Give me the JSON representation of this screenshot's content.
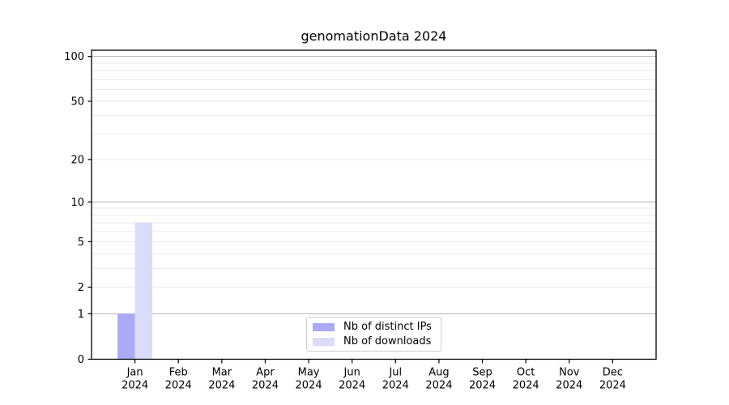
{
  "title": "genomationData 2024",
  "chart_data": {
    "type": "bar",
    "title": "genomationData 2024",
    "categories": [
      "Jan 2024",
      "Feb 2024",
      "Mar 2024",
      "Apr 2024",
      "May 2024",
      "Jun 2024",
      "Jul 2024",
      "Aug 2024",
      "Sep 2024",
      "Oct 2024",
      "Nov 2024",
      "Dec 2024"
    ],
    "series": [
      {
        "name": "Nb of distinct IPs",
        "color": "#aaaaf7",
        "values": [
          1,
          0,
          0,
          0,
          0,
          0,
          0,
          0,
          0,
          0,
          0,
          0
        ]
      },
      {
        "name": "Nb of downloads",
        "color": "#dbdbfa",
        "values": [
          7,
          0,
          0,
          0,
          0,
          0,
          0,
          0,
          0,
          0,
          0,
          0
        ]
      }
    ],
    "y_axis": {
      "scale": "log1p",
      "max_value": 110,
      "tick_values": [
        0,
        1,
        2,
        5,
        10,
        20,
        50,
        100
      ],
      "tick_labels": [
        "0",
        "1",
        "2",
        "5",
        "10",
        "20",
        "50",
        "100"
      ]
    },
    "grid": {
      "major_values": [
        1,
        10,
        100
      ],
      "minor_values": [
        2,
        3,
        4,
        5,
        6,
        7,
        8,
        9,
        20,
        30,
        40,
        50,
        60,
        70,
        80,
        90
      ],
      "major_color": "#b3b3b3",
      "minor_color": "#e9e9e9"
    },
    "legend_position": "bottom-center",
    "xlabel": "",
    "ylabel": ""
  },
  "colors": {
    "spine": "#000000",
    "tick_text": "#000000",
    "background": "#ffffff"
  }
}
